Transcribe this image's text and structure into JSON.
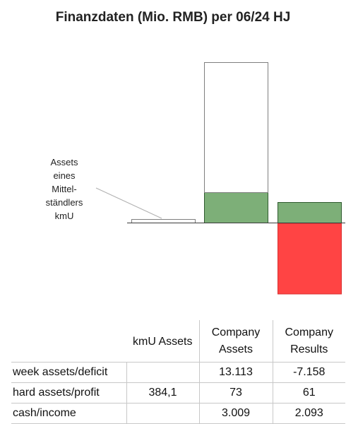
{
  "chart_data": {
    "type": "bar",
    "title": "Finanzdaten (Mio. RMB) per 06/24 HJ",
    "categories": [
      "kmU Assets",
      "Company Assets",
      "Company Results"
    ],
    "annotation": "Assets eines Mittel- ständlers kmU",
    "annotation_lines": [
      "Assets",
      "eines",
      "Mittel-",
      "ständlers",
      "kmU"
    ],
    "series": [
      {
        "name": "hard assets/profit",
        "values": [
          384.1,
          73,
          61
        ],
        "color": "#7daf78",
        "border": "#2f5a2f"
      },
      {
        "name": "week assets/deficit",
        "values": [
          null,
          13113,
          -7158
        ],
        "color": "#ffffff",
        "border": "#7f7f7f"
      },
      {
        "name": "cash/income",
        "values": [
          null,
          3009,
          2093
        ]
      }
    ],
    "negative_color": "#ff4444"
  },
  "table": {
    "headers": [
      "",
      "kmU Assets",
      "Company Assets",
      "Company Results"
    ],
    "rows": [
      {
        "label": "week assets/deficit",
        "kmu": "",
        "assets": "13.113",
        "results": "-7.158"
      },
      {
        "label": "hard assets/profit",
        "kmu": "384,1",
        "assets": "73",
        "results": "61"
      },
      {
        "label": "cash/income",
        "kmu": "",
        "assets": "3.009",
        "results": "2.093"
      }
    ]
  }
}
